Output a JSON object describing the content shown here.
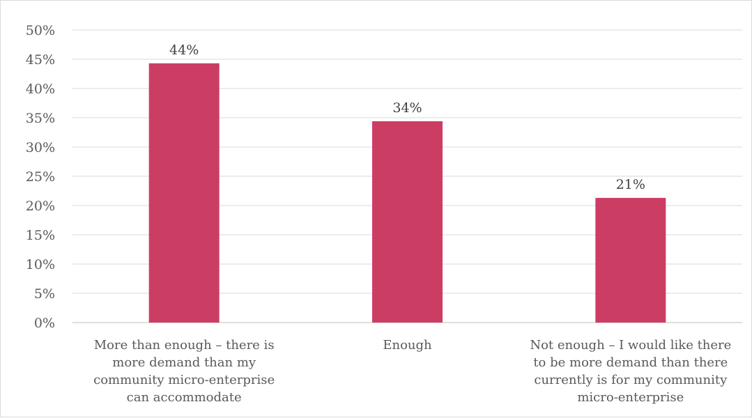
{
  "chart_data": {
    "type": "bar",
    "categories": [
      [
        "More than enough – there is",
        "more demand than my",
        "community micro-enterprise",
        "can accommodate"
      ],
      [
        "Enough"
      ],
      [
        "Not enough – I would like there",
        "to be more demand than there",
        "currently is for my community",
        "micro-enterprise"
      ]
    ],
    "values": [
      44.3,
      34.4,
      21.3
    ],
    "data_labels": [
      "44%",
      "34%",
      "21%"
    ],
    "ylim": [
      0,
      50
    ],
    "y_ticks": [
      0,
      5,
      10,
      15,
      20,
      25,
      30,
      35,
      40,
      45,
      50
    ],
    "y_tick_labels": [
      "0%",
      "5%",
      "10%",
      "15%",
      "20%",
      "25%",
      "30%",
      "35%",
      "40%",
      "45%",
      "50%"
    ],
    "grid": true,
    "legend": "none",
    "bar_color": "#cc3d64",
    "grid_color": "#d9d9d9",
    "axis_color": "#bfbfbf"
  }
}
